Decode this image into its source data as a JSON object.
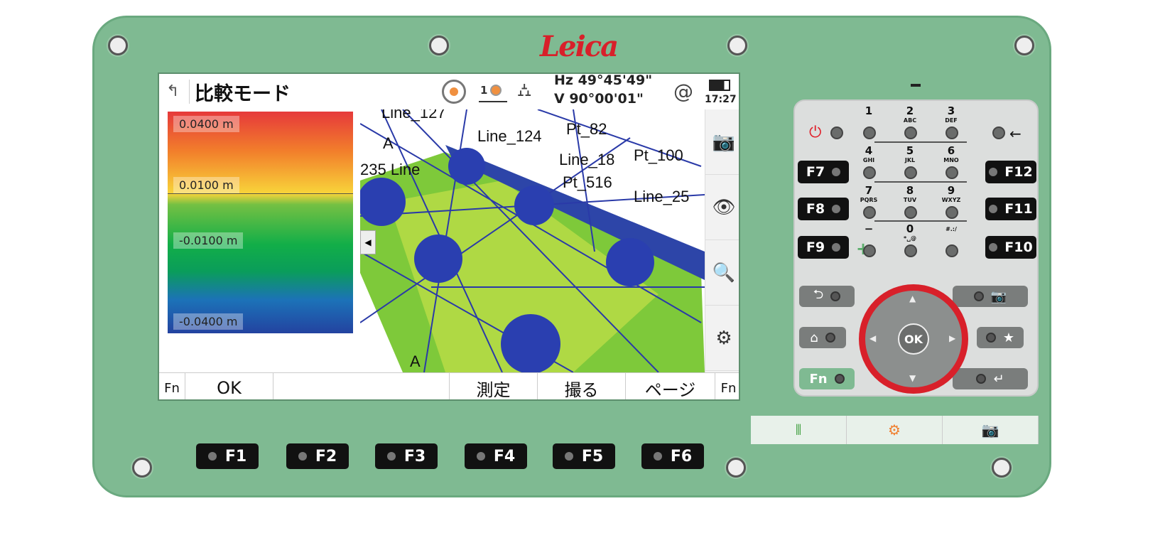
{
  "brand": "Leica",
  "screen": {
    "title": "比較モード",
    "angles": {
      "hz": "Hz 49°45'49\"",
      "v": "V  90°00'01\""
    },
    "prism_count": "1",
    "at_symbol": "@",
    "time": "17:27",
    "legend": [
      "0.0400 m",
      "0.0100 m",
      "-0.0100 m",
      "-0.0400 m"
    ],
    "map_labels": [
      "Line_127",
      "Line_124",
      "Pt_82",
      "Line_18",
      "Pt_100",
      "235 Line",
      "Pt_516",
      "Line_25",
      "A",
      "A"
    ],
    "softkeys": {
      "fn_left": "Fn",
      "ok": "OK",
      "measure": "測定",
      "capture": "撮る",
      "page": "ページ",
      "fn_right": "Fn"
    },
    "icons": [
      "back-icon",
      "target-icon",
      "prism-icon",
      "tilt-icon",
      "battery-icon",
      "camera-icon",
      "eye-icon",
      "zoom-icon",
      "gear-icon"
    ]
  },
  "fkeys_bottom": [
    "F1",
    "F2",
    "F3",
    "F4",
    "F5",
    "F6"
  ],
  "fkeys_side_left": [
    "F7",
    "F8",
    "F9"
  ],
  "fkeys_side_right": [
    "F12",
    "F11",
    "F10"
  ],
  "keypad": {
    "keys": [
      {
        "num": "1",
        "sub": ""
      },
      {
        "num": "2",
        "sub": "ABC"
      },
      {
        "num": "3",
        "sub": "DEF"
      },
      {
        "num": "4",
        "sub": "GHI"
      },
      {
        "num": "5",
        "sub": "JKL"
      },
      {
        "num": "6",
        "sub": "MNO"
      },
      {
        "num": "7",
        "sub": "PQRS"
      },
      {
        "num": "8",
        "sub": "TUV"
      },
      {
        "num": "9",
        "sub": "WXYZ"
      },
      {
        "num": "−",
        "sub": ""
      },
      {
        "num": "0",
        "sub": "*␣@"
      },
      {
        "num": "",
        "sub": "#.:/"
      }
    ],
    "ok": "OK",
    "fn": "Fn",
    "plus": "+",
    "backspace": "←",
    "power_color": "#e0202a"
  },
  "colors": {
    "body": "#7fba92",
    "ring": "#d8202a",
    "logo": "#d8202a"
  }
}
